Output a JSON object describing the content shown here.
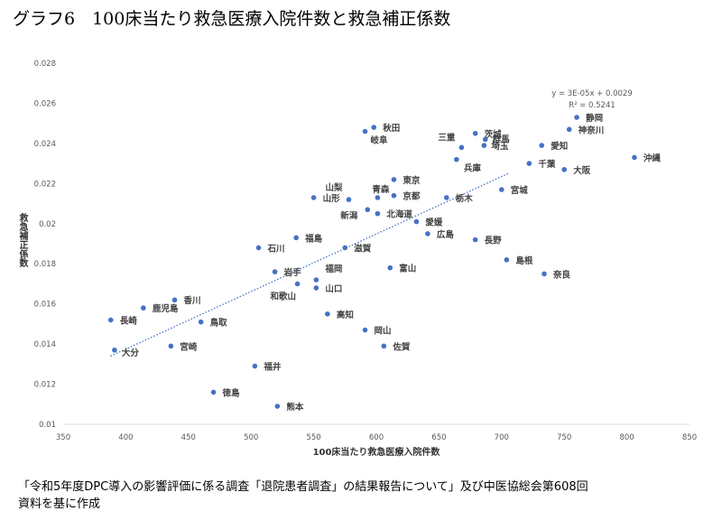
{
  "title": "グラフ6　100床当たり救急医療入院件数と救急補正係数",
  "notes": [
    "「令和5年度DPC導入の影響評価に係る調査「退院患者調査」の結果報告について」及び中医協総会第608回",
    "資料を基に作成"
  ],
  "chart_data": {
    "type": "scatter",
    "title": "",
    "xlabel": "100床当たり救急医療入院件数",
    "ylabel": "救急補正係数",
    "xlim": [
      350,
      850
    ],
    "ylim": [
      0.01,
      0.028
    ],
    "xticks": [
      "350",
      "400",
      "450",
      "500",
      "550",
      "600",
      "650",
      "700",
      "750",
      "800",
      "850"
    ],
    "yticks": [
      "0.01",
      "0.012",
      "0.014",
      "0.016",
      "0.018",
      "0.02",
      "0.022",
      "0.024",
      "0.026",
      "0.028"
    ],
    "grid": false,
    "color": "#4472C4",
    "points": [
      {
        "label": "秋田",
        "x": 598,
        "y": 0.0248
      },
      {
        "label": "岐阜",
        "x": 591,
        "y": 0.0246
      },
      {
        "label": "茨城",
        "x": 679,
        "y": 0.0245
      },
      {
        "label": "群馬",
        "x": 687,
        "y": 0.0242
      },
      {
        "label": "埼玉",
        "x": 686,
        "y": 0.0239
      },
      {
        "label": "三重",
        "x": 668,
        "y": 0.0238
      },
      {
        "label": "兵庫",
        "x": 664,
        "y": 0.0232
      },
      {
        "label": "静岡",
        "x": 760,
        "y": 0.0253
      },
      {
        "label": "神奈川",
        "x": 754,
        "y": 0.0247
      },
      {
        "label": "愛知",
        "x": 732,
        "y": 0.0239
      },
      {
        "label": "千葉",
        "x": 722,
        "y": 0.023
      },
      {
        "label": "大阪",
        "x": 750,
        "y": 0.0227
      },
      {
        "label": "沖縄",
        "x": 806,
        "y": 0.0233
      },
      {
        "label": "宮城",
        "x": 700,
        "y": 0.0217
      },
      {
        "label": "栃木",
        "x": 656,
        "y": 0.0213
      },
      {
        "label": "東京",
        "x": 614,
        "y": 0.0222
      },
      {
        "label": "京都",
        "x": 614,
        "y": 0.0214
      },
      {
        "label": "青森",
        "x": 601,
        "y": 0.0213
      },
      {
        "label": "山梨",
        "x": 578,
        "y": 0.0212
      },
      {
        "label": "山形",
        "x": 550,
        "y": 0.0213
      },
      {
        "label": "新潟",
        "x": 593,
        "y": 0.0207
      },
      {
        "label": "北海道",
        "x": 601,
        "y": 0.0205
      },
      {
        "label": "愛媛",
        "x": 632,
        "y": 0.0201
      },
      {
        "label": "広島",
        "x": 641,
        "y": 0.0195
      },
      {
        "label": "長野",
        "x": 679,
        "y": 0.0192
      },
      {
        "label": "福島",
        "x": 536,
        "y": 0.0193
      },
      {
        "label": "石川",
        "x": 506,
        "y": 0.0188
      },
      {
        "label": "滋賀",
        "x": 575,
        "y": 0.0188
      },
      {
        "label": "島根",
        "x": 704,
        "y": 0.0182
      },
      {
        "label": "富山",
        "x": 611,
        "y": 0.0178
      },
      {
        "label": "奈良",
        "x": 734,
        "y": 0.0175
      },
      {
        "label": "岩手",
        "x": 519,
        "y": 0.0176
      },
      {
        "label": "福岡",
        "x": 552,
        "y": 0.0172
      },
      {
        "label": "山口",
        "x": 552,
        "y": 0.0168
      },
      {
        "label": "和歌山",
        "x": 537,
        "y": 0.017
      },
      {
        "label": "香川",
        "x": 439,
        "y": 0.0162
      },
      {
        "label": "鹿児島",
        "x": 414,
        "y": 0.0158
      },
      {
        "label": "長崎",
        "x": 388,
        "y": 0.0152
      },
      {
        "label": "鳥取",
        "x": 460,
        "y": 0.0151
      },
      {
        "label": "高知",
        "x": 561,
        "y": 0.0155
      },
      {
        "label": "岡山",
        "x": 591,
        "y": 0.0147
      },
      {
        "label": "佐賀",
        "x": 606,
        "y": 0.0139
      },
      {
        "label": "宮崎",
        "x": 436,
        "y": 0.0139
      },
      {
        "label": "大分",
        "x": 391,
        "y": 0.0137
      },
      {
        "label": "福井",
        "x": 503,
        "y": 0.0129
      },
      {
        "label": "徳島",
        "x": 470,
        "y": 0.0116
      },
      {
        "label": "熊本",
        "x": 521,
        "y": 0.0109
      }
    ],
    "trendline": {
      "type": "linear",
      "equation": "y = 3E-05x + 0.0029",
      "r2": "R² = 0.5241",
      "x_range": [
        390,
        806
      ],
      "y_range": [
        0.01347,
        0.02539
      ]
    }
  }
}
